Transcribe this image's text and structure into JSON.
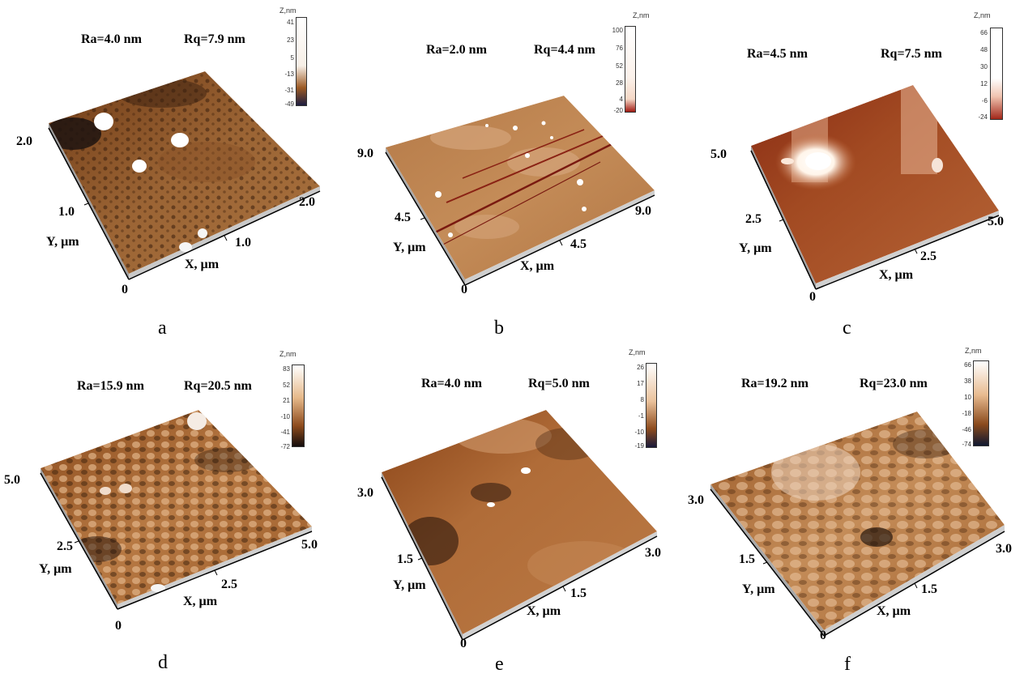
{
  "panels": [
    {
      "id": "a",
      "ra": "Ra=4.0 nm",
      "rq": "Rq=7.9 nm",
      "caption": "a",
      "x_axis": {
        "label": "X, µm",
        "ticks": [
          "1.0",
          "2.0"
        ]
      },
      "y_axis": {
        "label": "Y, µm",
        "ticks": [
          "1.0",
          "2.0"
        ]
      },
      "origin": "0",
      "colorbar": {
        "title": "Z,nm",
        "ticks": [
          "41",
          "23",
          "5",
          "-13",
          "-31",
          "-49"
        ],
        "colors": [
          "#ffffff",
          "#e9c9a4",
          "#9c5a24",
          "#1d1d40"
        ]
      }
    },
    {
      "id": "b",
      "ra": "Ra=2.0 nm",
      "rq": "Rq=4.4 nm",
      "caption": "b",
      "x_axis": {
        "label": "X, µm",
        "ticks": [
          "4.5",
          "9.0"
        ]
      },
      "y_axis": {
        "label": "Y, µm",
        "ticks": [
          "4.5",
          "9.0"
        ]
      },
      "origin": "0",
      "colorbar": {
        "title": "Z,nm",
        "ticks": [
          "100",
          "76",
          "52",
          "28",
          "4",
          "-20"
        ],
        "colors": [
          "#ffffff",
          "#fbf1ea",
          "#f5d8c6",
          "#a11a12"
        ]
      }
    },
    {
      "id": "c",
      "ra": "Ra=4.5 nm",
      "rq": "Rq=7.5 nm",
      "caption": "c",
      "x_axis": {
        "label": "X, µm",
        "ticks": [
          "2.5",
          "5.0"
        ]
      },
      "y_axis": {
        "label": "Y, µm",
        "ticks": [
          "2.5",
          "5.0"
        ]
      },
      "origin": "0",
      "colorbar": {
        "title": "Z,nm",
        "ticks": [
          "66",
          "48",
          "30",
          "12",
          "-6",
          "-24"
        ],
        "colors": [
          "#ffffff",
          "#ffffff",
          "#f0c4b0",
          "#a3281a"
        ]
      }
    },
    {
      "id": "d",
      "ra": "Ra=15.9 nm",
      "rq": "Rq=20.5 nm",
      "caption": "d",
      "x_axis": {
        "label": "X, µm",
        "ticks": [
          "2.5",
          "5.0"
        ]
      },
      "y_axis": {
        "label": "Y, µm",
        "ticks": [
          "2.5",
          "5.0"
        ]
      },
      "origin": "0",
      "colorbar": {
        "title": "Z,nm",
        "ticks": [
          "83",
          "52",
          "21",
          "-10",
          "-41",
          "-72"
        ],
        "colors": [
          "#ffffff",
          "#e6b98a",
          "#8c4a1c",
          "#140c0c"
        ]
      }
    },
    {
      "id": "e",
      "ra": "Ra=4.0 nm",
      "rq": "Rq=5.0 nm",
      "caption": "e",
      "x_axis": {
        "label": "X, µm",
        "ticks": [
          "1.5",
          "3.0"
        ]
      },
      "y_axis": {
        "label": "Y, µm",
        "ticks": [
          "1.5",
          "3.0"
        ]
      },
      "origin": "0",
      "colorbar": {
        "title": "Z,nm",
        "ticks": [
          "26",
          "17",
          "8",
          "-1",
          "-10",
          "-19"
        ],
        "colors": [
          "#ffffff",
          "#eac29c",
          "#8e4c1e",
          "#1a1a3a"
        ]
      }
    },
    {
      "id": "f",
      "ra": "Ra=19.2 nm",
      "rq": "Rq=23.0 nm",
      "caption": "f",
      "x_axis": {
        "label": "X, µm",
        "ticks": [
          "1.5",
          "3.0"
        ]
      },
      "y_axis": {
        "label": "Y, µm",
        "ticks": [
          "1.5",
          "3.0"
        ]
      },
      "origin": "0",
      "colorbar": {
        "title": "Z,nm",
        "ticks": [
          "66",
          "38",
          "10",
          "-18",
          "-46",
          "-74"
        ],
        "colors": [
          "#ffffff",
          "#e8bb90",
          "#8a4a1c",
          "#101830"
        ]
      }
    }
  ]
}
